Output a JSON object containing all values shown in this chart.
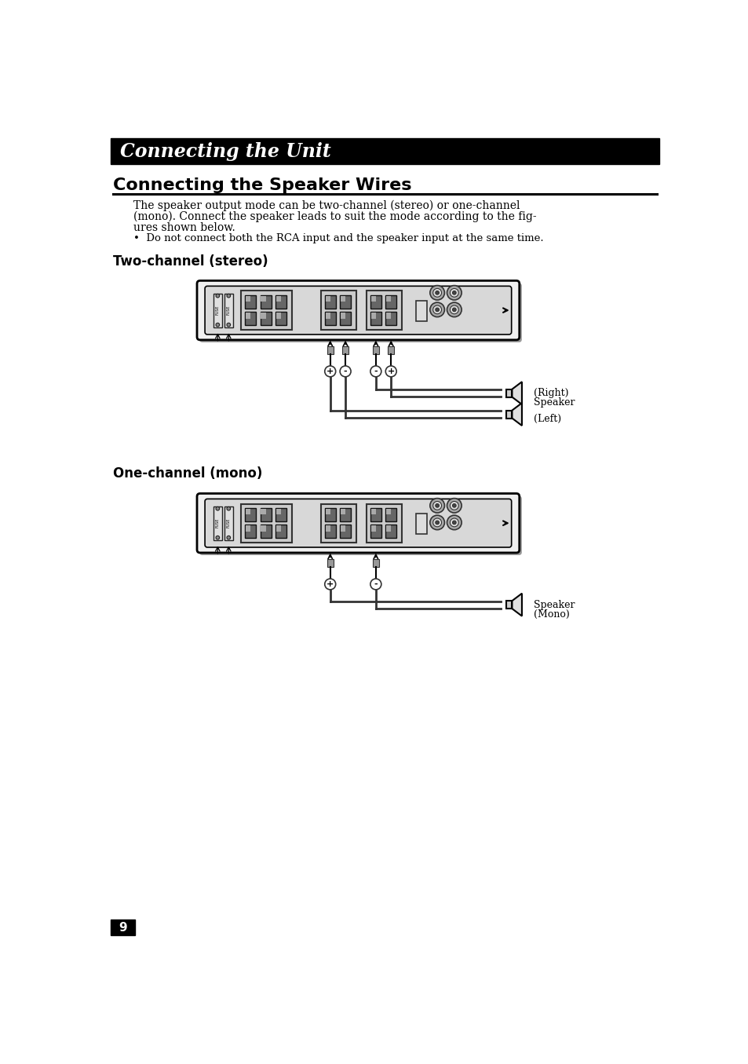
{
  "page_bg": "#ffffff",
  "header_bg": "#000000",
  "header_text": "Connecting the Unit",
  "header_text_color": "#ffffff",
  "section_title": "Connecting the Speaker Wires",
  "section_title_color": "#000000",
  "body_text_line1": "The speaker output mode can be two-channel (stereo) or one-channel",
  "body_text_line2": "(mono). Connect the speaker leads to suit the mode according to the fig-",
  "body_text_line3": "ures shown below.",
  "bullet_text": "•  Do not connect both the RCA input and the speaker input at the same time.",
  "subhead1": "Two-channel (stereo)",
  "subhead2": "One-channel (mono)",
  "right_label1": "(Right)",
  "right_label2": "Speaker",
  "right_label3": "(Left)",
  "mono_label1": "Speaker",
  "mono_label2": "(Mono)",
  "page_number": "9",
  "divider_color": "#000000",
  "amp_border": "#000000",
  "amp_face_light": "#f0f0f0",
  "amp_face_mid": "#d8d8d8",
  "amp_face_dark": "#b0b0b0",
  "terminal_face": "#cccccc",
  "terminal_slot": "#666666",
  "wire_color": "#222222",
  "connector_color": "#888888",
  "rca_face": "#aaaaaa",
  "rca_inner": "#444444"
}
